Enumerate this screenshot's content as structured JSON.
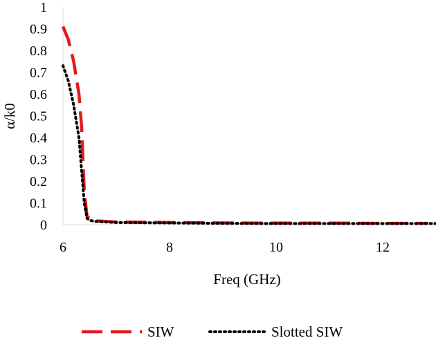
{
  "chart_data": {
    "type": "line",
    "title": "",
    "xlabel": "Freq (GHz)",
    "ylabel": "α/k0",
    "xlim": [
      6,
      13
    ],
    "ylim": [
      0,
      1
    ],
    "x_ticks": [
      6,
      8,
      10,
      12
    ],
    "y_ticks": [
      0,
      0.1,
      0.2,
      0.3,
      0.4,
      0.5,
      0.6,
      0.7,
      0.8,
      0.9,
      1
    ],
    "x_tick_labels": [
      "6",
      "8",
      "10",
      "12"
    ],
    "y_tick_labels": [
      "0",
      "0.1",
      "0.2",
      "0.3",
      "0.4",
      "0.5",
      "0.6",
      "0.7",
      "0.8",
      "0.9",
      "1"
    ],
    "grid": false,
    "legend_position": "bottom-center",
    "series": [
      {
        "name": "SIW",
        "color": "#e31a1c",
        "style": "long-dash",
        "x": [
          6.0,
          6.1,
          6.2,
          6.3,
          6.35,
          6.4,
          6.45,
          6.5,
          6.6,
          7.0,
          8.0,
          9.0,
          10.0,
          11.0,
          12.0,
          12.85
        ],
        "y": [
          0.91,
          0.85,
          0.75,
          0.6,
          0.45,
          0.15,
          0.04,
          0.025,
          0.018,
          0.012,
          0.01,
          0.008,
          0.007,
          0.007,
          0.006,
          0.006
        ]
      },
      {
        "name": "Slotted SIW",
        "color": "#000000",
        "style": "dotted",
        "x": [
          6.0,
          6.1,
          6.2,
          6.3,
          6.35,
          6.4,
          6.45,
          6.5,
          6.6,
          7.0,
          8.0,
          9.0,
          10.0,
          11.0,
          12.0,
          13.0
        ],
        "y": [
          0.73,
          0.66,
          0.55,
          0.4,
          0.25,
          0.1,
          0.03,
          0.02,
          0.015,
          0.01,
          0.008,
          0.006,
          0.005,
          0.005,
          0.005,
          0.005
        ]
      }
    ]
  }
}
